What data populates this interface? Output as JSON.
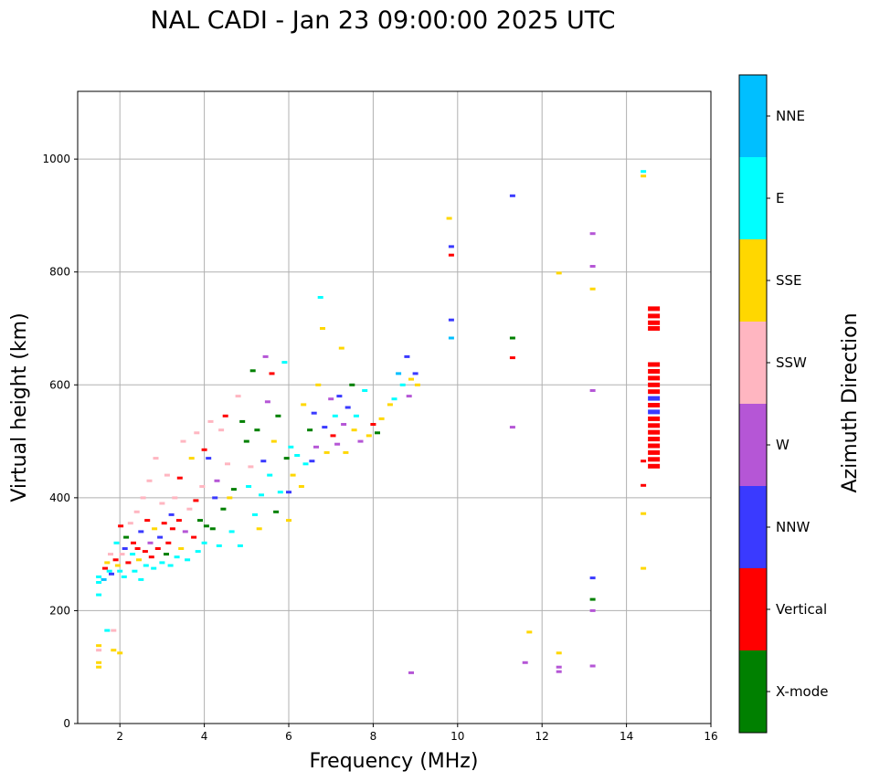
{
  "chart_data": {
    "type": "scatter",
    "title": "NAL CADI - Jan 23 09:00:00 2025 UTC",
    "xlabel": "Frequency (MHz)",
    "ylabel": "Virtual height (km)",
    "xlim": [
      1,
      16
    ],
    "ylim": [
      0,
      1120
    ],
    "xticks": [
      2,
      4,
      6,
      8,
      10,
      12,
      14,
      16
    ],
    "yticks": [
      0,
      200,
      400,
      600,
      800,
      1000
    ],
    "grid": true,
    "colorbar": {
      "title": "Azimuth Direction",
      "categories": [
        {
          "name": "X-mode",
          "color": "#008000"
        },
        {
          "name": "Vertical",
          "color": "#ff0000"
        },
        {
          "name": "NNW",
          "color": "#3a3aff"
        },
        {
          "name": "W",
          "color": "#b556d6"
        },
        {
          "name": "SSW",
          "color": "#ffb6c1"
        },
        {
          "name": "SSE",
          "color": "#ffd700"
        },
        {
          "name": "E",
          "color": "#00ffff"
        },
        {
          "name": "NNE",
          "color": "#00bfff"
        }
      ]
    },
    "points": [
      {
        "f": 1.5,
        "h": 250,
        "c": "E"
      },
      {
        "f": 1.5,
        "h": 228,
        "c": "E"
      },
      {
        "f": 1.5,
        "h": 260,
        "c": "E"
      },
      {
        "f": 1.5,
        "h": 100,
        "c": "SSE"
      },
      {
        "f": 1.5,
        "h": 108,
        "c": "SSE"
      },
      {
        "f": 1.5,
        "h": 130,
        "c": "SSW"
      },
      {
        "f": 1.5,
        "h": 138,
        "c": "SSE"
      },
      {
        "f": 1.62,
        "h": 255,
        "c": "NNE"
      },
      {
        "f": 1.65,
        "h": 275,
        "c": "Vertical"
      },
      {
        "f": 1.7,
        "h": 285,
        "c": "SSE"
      },
      {
        "f": 1.7,
        "h": 165,
        "c": "E"
      },
      {
        "f": 1.75,
        "h": 270,
        "c": "E"
      },
      {
        "f": 1.78,
        "h": 300,
        "c": "SSW"
      },
      {
        "f": 1.8,
        "h": 265,
        "c": "NNW"
      },
      {
        "f": 1.85,
        "h": 165,
        "c": "SSW"
      },
      {
        "f": 1.85,
        "h": 130,
        "c": "SSE"
      },
      {
        "f": 1.9,
        "h": 290,
        "c": "Vertical"
      },
      {
        "f": 1.92,
        "h": 320,
        "c": "E"
      },
      {
        "f": 1.95,
        "h": 280,
        "c": "SSE"
      },
      {
        "f": 2.0,
        "h": 125,
        "c": "SSE"
      },
      {
        "f": 2.0,
        "h": 270,
        "c": "E"
      },
      {
        "f": 2.02,
        "h": 350,
        "c": "Vertical"
      },
      {
        "f": 2.05,
        "h": 300,
        "c": "SSW"
      },
      {
        "f": 2.1,
        "h": 260,
        "c": "E"
      },
      {
        "f": 2.12,
        "h": 310,
        "c": "NNW"
      },
      {
        "f": 2.15,
        "h": 330,
        "c": "X-mode"
      },
      {
        "f": 2.2,
        "h": 285,
        "c": "Vertical"
      },
      {
        "f": 2.25,
        "h": 355,
        "c": "SSW"
      },
      {
        "f": 2.3,
        "h": 300,
        "c": "E"
      },
      {
        "f": 2.32,
        "h": 320,
        "c": "Vertical"
      },
      {
        "f": 2.35,
        "h": 270,
        "c": "E"
      },
      {
        "f": 2.4,
        "h": 375,
        "c": "SSW"
      },
      {
        "f": 2.42,
        "h": 310,
        "c": "Vertical"
      },
      {
        "f": 2.45,
        "h": 290,
        "c": "SSE"
      },
      {
        "f": 2.5,
        "h": 255,
        "c": "E"
      },
      {
        "f": 2.5,
        "h": 340,
        "c": "NNW"
      },
      {
        "f": 2.55,
        "h": 400,
        "c": "SSW"
      },
      {
        "f": 2.6,
        "h": 305,
        "c": "Vertical"
      },
      {
        "f": 2.62,
        "h": 280,
        "c": "E"
      },
      {
        "f": 2.65,
        "h": 360,
        "c": "Vertical"
      },
      {
        "f": 2.7,
        "h": 430,
        "c": "SSW"
      },
      {
        "f": 2.72,
        "h": 320,
        "c": "W"
      },
      {
        "f": 2.75,
        "h": 295,
        "c": "Vertical"
      },
      {
        "f": 2.8,
        "h": 275,
        "c": "E"
      },
      {
        "f": 2.82,
        "h": 345,
        "c": "SSE"
      },
      {
        "f": 2.85,
        "h": 470,
        "c": "SSW"
      },
      {
        "f": 2.9,
        "h": 310,
        "c": "Vertical"
      },
      {
        "f": 2.95,
        "h": 330,
        "c": "NNW"
      },
      {
        "f": 3.0,
        "h": 285,
        "c": "E"
      },
      {
        "f": 3.0,
        "h": 390,
        "c": "SSW"
      },
      {
        "f": 3.05,
        "h": 355,
        "c": "Vertical"
      },
      {
        "f": 3.1,
        "h": 300,
        "c": "X-mode"
      },
      {
        "f": 3.12,
        "h": 440,
        "c": "SSW"
      },
      {
        "f": 3.15,
        "h": 320,
        "c": "Vertical"
      },
      {
        "f": 3.2,
        "h": 280,
        "c": "E"
      },
      {
        "f": 3.22,
        "h": 370,
        "c": "NNW"
      },
      {
        "f": 3.25,
        "h": 345,
        "c": "Vertical"
      },
      {
        "f": 3.3,
        "h": 400,
        "c": "SSW"
      },
      {
        "f": 3.35,
        "h": 295,
        "c": "E"
      },
      {
        "f": 3.4,
        "h": 360,
        "c": "Vertical"
      },
      {
        "f": 3.42,
        "h": 435,
        "c": "Vertical"
      },
      {
        "f": 3.45,
        "h": 310,
        "c": "SSE"
      },
      {
        "f": 3.5,
        "h": 500,
        "c": "SSW"
      },
      {
        "f": 3.55,
        "h": 340,
        "c": "W"
      },
      {
        "f": 3.6,
        "h": 290,
        "c": "E"
      },
      {
        "f": 3.65,
        "h": 380,
        "c": "SSW"
      },
      {
        "f": 3.7,
        "h": 470,
        "c": "SSE"
      },
      {
        "f": 3.75,
        "h": 330,
        "c": "Vertical"
      },
      {
        "f": 3.8,
        "h": 395,
        "c": "Vertical"
      },
      {
        "f": 3.82,
        "h": 515,
        "c": "SSW"
      },
      {
        "f": 3.85,
        "h": 305,
        "c": "E"
      },
      {
        "f": 3.9,
        "h": 360,
        "c": "X-mode"
      },
      {
        "f": 3.95,
        "h": 420,
        "c": "SSW"
      },
      {
        "f": 4.0,
        "h": 485,
        "c": "Vertical"
      },
      {
        "f": 4.0,
        "h": 320,
        "c": "E"
      },
      {
        "f": 4.05,
        "h": 350,
        "c": "X-mode"
      },
      {
        "f": 4.1,
        "h": 470,
        "c": "NNW"
      },
      {
        "f": 4.15,
        "h": 535,
        "c": "SSW"
      },
      {
        "f": 4.2,
        "h": 345,
        "c": "X-mode"
      },
      {
        "f": 4.25,
        "h": 400,
        "c": "NNW"
      },
      {
        "f": 4.3,
        "h": 430,
        "c": "W"
      },
      {
        "f": 4.35,
        "h": 315,
        "c": "E"
      },
      {
        "f": 4.4,
        "h": 520,
        "c": "SSW"
      },
      {
        "f": 4.45,
        "h": 380,
        "c": "X-mode"
      },
      {
        "f": 4.5,
        "h": 545,
        "c": "Vertical"
      },
      {
        "f": 4.55,
        "h": 460,
        "c": "SSW"
      },
      {
        "f": 4.6,
        "h": 400,
        "c": "SSE"
      },
      {
        "f": 4.65,
        "h": 340,
        "c": "E"
      },
      {
        "f": 4.7,
        "h": 415,
        "c": "X-mode"
      },
      {
        "f": 4.8,
        "h": 580,
        "c": "SSW"
      },
      {
        "f": 4.85,
        "h": 315,
        "c": "E"
      },
      {
        "f": 4.9,
        "h": 535,
        "c": "X-mode"
      },
      {
        "f": 5.0,
        "h": 500,
        "c": "X-mode"
      },
      {
        "f": 5.05,
        "h": 420,
        "c": "E"
      },
      {
        "f": 5.1,
        "h": 455,
        "c": "SSW"
      },
      {
        "f": 5.15,
        "h": 625,
        "c": "X-mode"
      },
      {
        "f": 5.2,
        "h": 370,
        "c": "E"
      },
      {
        "f": 5.25,
        "h": 520,
        "c": "X-mode"
      },
      {
        "f": 5.3,
        "h": 345,
        "c": "SSE"
      },
      {
        "f": 5.35,
        "h": 405,
        "c": "E"
      },
      {
        "f": 5.4,
        "h": 465,
        "c": "NNW"
      },
      {
        "f": 5.45,
        "h": 650,
        "c": "W"
      },
      {
        "f": 5.5,
        "h": 570,
        "c": "W"
      },
      {
        "f": 5.55,
        "h": 440,
        "c": "E"
      },
      {
        "f": 5.6,
        "h": 620,
        "c": "Vertical"
      },
      {
        "f": 5.65,
        "h": 500,
        "c": "SSE"
      },
      {
        "f": 5.7,
        "h": 375,
        "c": "X-mode"
      },
      {
        "f": 5.75,
        "h": 545,
        "c": "X-mode"
      },
      {
        "f": 5.8,
        "h": 410,
        "c": "E"
      },
      {
        "f": 5.9,
        "h": 640,
        "c": "E"
      },
      {
        "f": 5.95,
        "h": 470,
        "c": "X-mode"
      },
      {
        "f": 6.0,
        "h": 360,
        "c": "SSE"
      },
      {
        "f": 6.0,
        "h": 410,
        "c": "NNW"
      },
      {
        "f": 6.05,
        "h": 490,
        "c": "E"
      },
      {
        "f": 6.1,
        "h": 440,
        "c": "SSE"
      },
      {
        "f": 6.2,
        "h": 475,
        "c": "E"
      },
      {
        "f": 6.3,
        "h": 420,
        "c": "SSE"
      },
      {
        "f": 6.35,
        "h": 565,
        "c": "SSE"
      },
      {
        "f": 6.4,
        "h": 460,
        "c": "E"
      },
      {
        "f": 6.5,
        "h": 520,
        "c": "X-mode"
      },
      {
        "f": 6.55,
        "h": 465,
        "c": "NNW"
      },
      {
        "f": 6.6,
        "h": 550,
        "c": "NNW"
      },
      {
        "f": 6.65,
        "h": 490,
        "c": "W"
      },
      {
        "f": 6.7,
        "h": 600,
        "c": "SSE"
      },
      {
        "f": 6.75,
        "h": 755,
        "c": "E"
      },
      {
        "f": 6.8,
        "h": 700,
        "c": "SSE"
      },
      {
        "f": 6.85,
        "h": 525,
        "c": "NNW"
      },
      {
        "f": 6.9,
        "h": 480,
        "c": "SSE"
      },
      {
        "f": 7.0,
        "h": 575,
        "c": "W"
      },
      {
        "f": 7.05,
        "h": 510,
        "c": "Vertical"
      },
      {
        "f": 7.1,
        "h": 545,
        "c": "E"
      },
      {
        "f": 7.15,
        "h": 495,
        "c": "W"
      },
      {
        "f": 7.2,
        "h": 580,
        "c": "NNW"
      },
      {
        "f": 7.25,
        "h": 665,
        "c": "SSE"
      },
      {
        "f": 7.3,
        "h": 530,
        "c": "W"
      },
      {
        "f": 7.35,
        "h": 480,
        "c": "SSE"
      },
      {
        "f": 7.4,
        "h": 560,
        "c": "NNW"
      },
      {
        "f": 7.5,
        "h": 600,
        "c": "X-mode"
      },
      {
        "f": 7.55,
        "h": 520,
        "c": "SSE"
      },
      {
        "f": 7.6,
        "h": 545,
        "c": "E"
      },
      {
        "f": 7.7,
        "h": 500,
        "c": "W"
      },
      {
        "f": 7.8,
        "h": 590,
        "c": "E"
      },
      {
        "f": 7.9,
        "h": 510,
        "c": "SSE"
      },
      {
        "f": 8.0,
        "h": 530,
        "c": "Vertical"
      },
      {
        "f": 8.1,
        "h": 515,
        "c": "X-mode"
      },
      {
        "f": 8.2,
        "h": 540,
        "c": "SSE"
      },
      {
        "f": 8.4,
        "h": 565,
        "c": "SSE"
      },
      {
        "f": 8.5,
        "h": 575,
        "c": "E"
      },
      {
        "f": 8.6,
        "h": 620,
        "c": "NNE"
      },
      {
        "f": 8.7,
        "h": 600,
        "c": "E"
      },
      {
        "f": 8.8,
        "h": 650,
        "c": "NNW"
      },
      {
        "f": 8.85,
        "h": 580,
        "c": "W"
      },
      {
        "f": 8.9,
        "h": 610,
        "c": "SSE"
      },
      {
        "f": 9.0,
        "h": 620,
        "c": "NNW"
      },
      {
        "f": 9.05,
        "h": 600,
        "c": "SSE"
      },
      {
        "f": 8.9,
        "h": 90,
        "c": "W"
      },
      {
        "f": 9.8,
        "h": 895,
        "c": "SSE"
      },
      {
        "f": 9.85,
        "h": 845,
        "c": "NNW"
      },
      {
        "f": 9.85,
        "h": 830,
        "c": "Vertical"
      },
      {
        "f": 9.85,
        "h": 715,
        "c": "NNW"
      },
      {
        "f": 9.85,
        "h": 683,
        "c": "NNE"
      },
      {
        "f": 11.3,
        "h": 935,
        "c": "NNW"
      },
      {
        "f": 11.3,
        "h": 683,
        "c": "X-mode"
      },
      {
        "f": 11.3,
        "h": 648,
        "c": "Vertical"
      },
      {
        "f": 11.3,
        "h": 525,
        "c": "W"
      },
      {
        "f": 11.6,
        "h": 108,
        "c": "W"
      },
      {
        "f": 11.7,
        "h": 162,
        "c": "SSE"
      },
      {
        "f": 12.4,
        "h": 798,
        "c": "SSE"
      },
      {
        "f": 12.4,
        "h": 125,
        "c": "SSE"
      },
      {
        "f": 12.4,
        "h": 100,
        "c": "W"
      },
      {
        "f": 12.4,
        "h": 92,
        "c": "W"
      },
      {
        "f": 13.2,
        "h": 868,
        "c": "W"
      },
      {
        "f": 13.2,
        "h": 810,
        "c": "W"
      },
      {
        "f": 13.2,
        "h": 770,
        "c": "SSE"
      },
      {
        "f": 13.2,
        "h": 590,
        "c": "W"
      },
      {
        "f": 13.2,
        "h": 258,
        "c": "NNW"
      },
      {
        "f": 13.2,
        "h": 220,
        "c": "X-mode"
      },
      {
        "f": 13.2,
        "h": 200,
        "c": "W"
      },
      {
        "f": 13.2,
        "h": 102,
        "c": "W"
      },
      {
        "f": 14.4,
        "h": 978,
        "c": "E"
      },
      {
        "f": 14.4,
        "h": 970,
        "c": "SSE"
      },
      {
        "f": 14.4,
        "h": 465,
        "c": "Vertical"
      },
      {
        "f": 14.4,
        "h": 422,
        "c": "Vertical"
      },
      {
        "f": 14.4,
        "h": 372,
        "c": "SSE"
      },
      {
        "f": 14.4,
        "h": 275,
        "c": "SSE"
      },
      {
        "f": 14.65,
        "h": 735,
        "c": "Vertical"
      },
      {
        "f": 14.65,
        "h": 722,
        "c": "Vertical"
      },
      {
        "f": 14.65,
        "h": 710,
        "c": "Vertical"
      },
      {
        "f": 14.65,
        "h": 700,
        "c": "Vertical"
      },
      {
        "f": 14.65,
        "h": 636,
        "c": "Vertical"
      },
      {
        "f": 14.65,
        "h": 624,
        "c": "Vertical"
      },
      {
        "f": 14.65,
        "h": 612,
        "c": "Vertical"
      },
      {
        "f": 14.65,
        "h": 600,
        "c": "Vertical"
      },
      {
        "f": 14.65,
        "h": 588,
        "c": "Vertical"
      },
      {
        "f": 14.65,
        "h": 576,
        "c": "NNW"
      },
      {
        "f": 14.65,
        "h": 564,
        "c": "Vertical"
      },
      {
        "f": 14.65,
        "h": 552,
        "c": "NNW"
      },
      {
        "f": 14.65,
        "h": 540,
        "c": "Vertical"
      },
      {
        "f": 14.65,
        "h": 528,
        "c": "Vertical"
      },
      {
        "f": 14.65,
        "h": 516,
        "c": "Vertical"
      },
      {
        "f": 14.65,
        "h": 504,
        "c": "Vertical"
      },
      {
        "f": 14.65,
        "h": 492,
        "c": "Vertical"
      },
      {
        "f": 14.65,
        "h": 480,
        "c": "Vertical"
      },
      {
        "f": 14.65,
        "h": 468,
        "c": "Vertical"
      },
      {
        "f": 14.65,
        "h": 456,
        "c": "Vertical"
      }
    ]
  }
}
